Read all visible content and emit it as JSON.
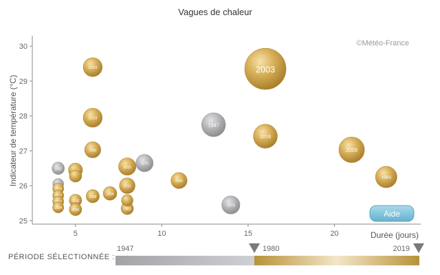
{
  "chart_data": {
    "type": "scatter",
    "title": "Vagues de chaleur",
    "xlabel": "Durée (jours)",
    "ylabel": "Indicateur de température (°C)",
    "xlim": [
      2.5,
      25
    ],
    "ylim": [
      24.9,
      30.3
    ],
    "x_ticks": [
      5,
      10,
      15,
      20
    ],
    "y_ticks": [
      25,
      26,
      27,
      28,
      29,
      30
    ],
    "size_encodes": "Durée (jours)",
    "color_encodes": "année (1947 gris → 2019 or)",
    "credit": "©Météo-France",
    "points": [
      {
        "label": "2003",
        "x": 16,
        "y": 29.35,
        "size": 1.0,
        "color": "#c9a13f"
      },
      {
        "label": "2019",
        "x": 6,
        "y": 29.4,
        "size": 0.46,
        "color": "#c9a13f"
      },
      {
        "label": "2019",
        "x": 6,
        "y": 27.95,
        "size": 0.46,
        "color": "#c9a13f"
      },
      {
        "label": "1947",
        "x": 13,
        "y": 27.75,
        "size": 0.58,
        "color": "#a5a5a8"
      },
      {
        "label": "2018",
        "x": 16,
        "y": 27.42,
        "size": 0.58,
        "color": "#c9a13f"
      },
      {
        "label": "2006",
        "x": 21,
        "y": 27.03,
        "size": 0.62,
        "color": "#c9a13f"
      },
      {
        "label": "1990",
        "x": 6,
        "y": 27.03,
        "size": 0.39,
        "color": "#c9a13f"
      },
      {
        "label": "2015",
        "x": 8,
        "y": 26.55,
        "size": 0.42,
        "color": "#c9a13f"
      },
      {
        "label": "1975",
        "x": 9,
        "y": 26.65,
        "size": 0.42,
        "color": "#a5a5a8"
      },
      {
        "label": "1983",
        "x": 23,
        "y": 26.25,
        "size": 0.52,
        "color": "#c9a13f"
      },
      {
        "label": "2005",
        "x": 11,
        "y": 26.15,
        "size": 0.39,
        "color": "#c9a13f"
      },
      {
        "label": "1976",
        "x": 14,
        "y": 25.45,
        "size": 0.44,
        "color": "#a5a5a8"
      },
      {
        "label": "1952",
        "x": 4,
        "y": 26.5,
        "size": 0.3,
        "color": "#a5a5a8"
      },
      {
        "label": "2017",
        "x": 5,
        "y": 26.45,
        "size": 0.34,
        "color": "#c9a13f"
      },
      {
        "label": "",
        "x": 5,
        "y": 26.28,
        "size": 0.3,
        "color": "#c9a13f"
      },
      {
        "label": "",
        "x": 4,
        "y": 26.05,
        "size": 0.26,
        "color": "#a5a5a8"
      },
      {
        "label": "2019",
        "x": 4,
        "y": 25.92,
        "size": 0.26,
        "color": "#c9a13f"
      },
      {
        "label": "2015",
        "x": 8,
        "y": 26.0,
        "size": 0.38,
        "color": "#c9a13f"
      },
      {
        "label": "2017",
        "x": 4,
        "y": 25.72,
        "size": 0.26,
        "color": "#c9a13f"
      },
      {
        "label": "1998",
        "x": 6,
        "y": 25.7,
        "size": 0.32,
        "color": "#c9a13f"
      },
      {
        "label": "1994",
        "x": 7,
        "y": 25.78,
        "size": 0.33,
        "color": "#c9a13f"
      },
      {
        "label": "2017",
        "x": 4,
        "y": 25.55,
        "size": 0.26,
        "color": "#c9a13f"
      },
      {
        "label": "2016",
        "x": 5,
        "y": 25.58,
        "size": 0.3,
        "color": "#c9a13f"
      },
      {
        "label": "",
        "x": 8,
        "y": 25.58,
        "size": 0.28,
        "color": "#c9a13f"
      },
      {
        "label": "2004",
        "x": 4,
        "y": 25.38,
        "size": 0.26,
        "color": "#c9a13f"
      },
      {
        "label": "2020",
        "x": 5,
        "y": 25.32,
        "size": 0.3,
        "color": "#c9a13f"
      },
      {
        "label": "1983",
        "x": 8,
        "y": 25.35,
        "size": 0.3,
        "color": "#c9a13f"
      }
    ]
  },
  "help_button": {
    "label": "Aide",
    "color": "#7fc4dc"
  },
  "period": {
    "label": "PÉRIODE SÉLECTIONNÉE :",
    "start_year": "1947",
    "mid_year": "1980",
    "end_year": "2019",
    "gray_color": "#a9a9ac",
    "gold_color": "#b8923a"
  }
}
